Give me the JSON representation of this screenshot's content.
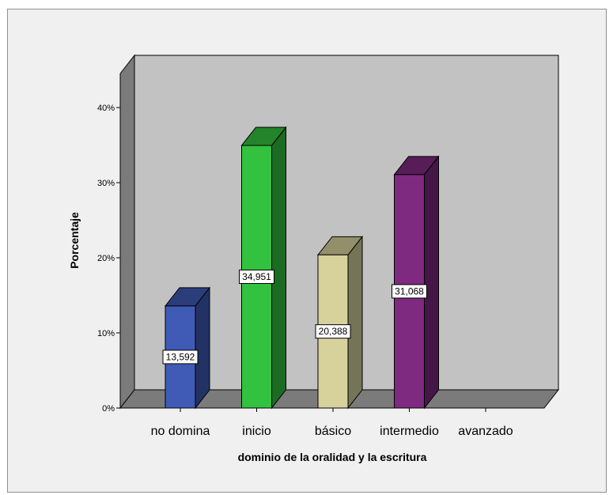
{
  "chart_data": {
    "type": "bar",
    "style": "3d",
    "xlabel": "dominio de la oralidad y la escritura",
    "ylabel": "Porcentaje",
    "categories": [
      "no domina",
      "inicio",
      "básico",
      "intermedio",
      "avanzado"
    ],
    "values": [
      13.592,
      34.951,
      20.388,
      31.068,
      0
    ],
    "data_labels": [
      "13,592",
      "34,951",
      "20,388",
      "31,068",
      ""
    ],
    "bar_colors": [
      "#3f5bb5",
      "#33c23f",
      "#d7d29c",
      "#7e2a80",
      null
    ],
    "ylim": [
      0,
      40
    ],
    "yticks": [
      0,
      10,
      20,
      30,
      40
    ],
    "ytick_labels": [
      "0%",
      "10%",
      "20%",
      "30%",
      "40%"
    ],
    "grid": false,
    "background": "#c2c2c2"
  }
}
